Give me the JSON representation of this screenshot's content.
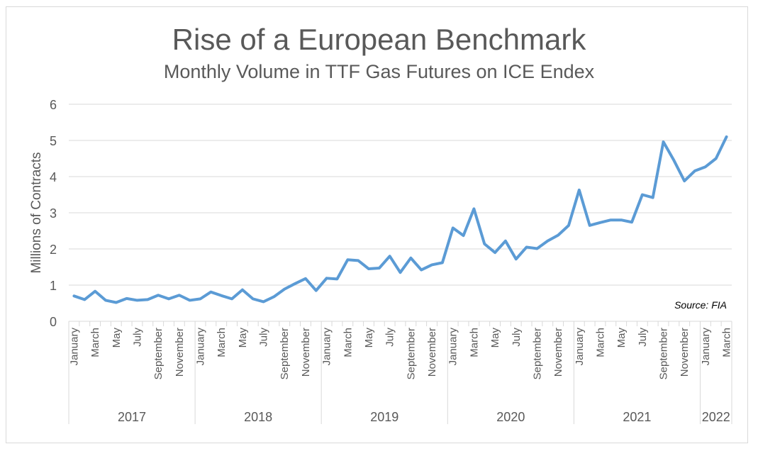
{
  "chart_data": {
    "type": "line",
    "title": "Rise of a European Benchmark",
    "subtitle": "Monthly Volume in TTF Gas Futures on ICE Endex",
    "ylabel": "Millions of Contracts",
    "xlabel": "",
    "ylim": [
      0,
      6
    ],
    "yticks": [
      0,
      1,
      2,
      3,
      4,
      5,
      6
    ],
    "grid": true,
    "legend": "none",
    "annotation": "Source: FIA",
    "line_color": "#5b9bd5",
    "month_tick_labels": [
      "January",
      "March",
      "May",
      "July",
      "September",
      "November"
    ],
    "years": [
      {
        "label": "2017",
        "months": 12
      },
      {
        "label": "2018",
        "months": 12
      },
      {
        "label": "2019",
        "months": 12
      },
      {
        "label": "2020",
        "months": 12
      },
      {
        "label": "2021",
        "months": 12
      },
      {
        "label": "2022",
        "months": 3
      }
    ],
    "series": [
      {
        "values": [
          0.7,
          0.6,
          0.83,
          0.58,
          0.52,
          0.63,
          0.58,
          0.6,
          0.72,
          0.62,
          0.72,
          0.58,
          0.62,
          0.81,
          0.71,
          0.62,
          0.87,
          0.62,
          0.54,
          0.68,
          0.89,
          1.04,
          1.18,
          0.85,
          1.19,
          1.17,
          1.7,
          1.68,
          1.45,
          1.47,
          1.8,
          1.35,
          1.75,
          1.42,
          1.56,
          1.62,
          2.58,
          2.37,
          3.11,
          2.14,
          1.9,
          2.22,
          1.72,
          2.05,
          2.01,
          2.22,
          2.38,
          2.65,
          3.63,
          2.65,
          2.73,
          2.8,
          2.8,
          2.74,
          3.5,
          3.42,
          4.96,
          4.45,
          3.88,
          4.16,
          4.27,
          4.5,
          5.1
        ]
      }
    ]
  }
}
